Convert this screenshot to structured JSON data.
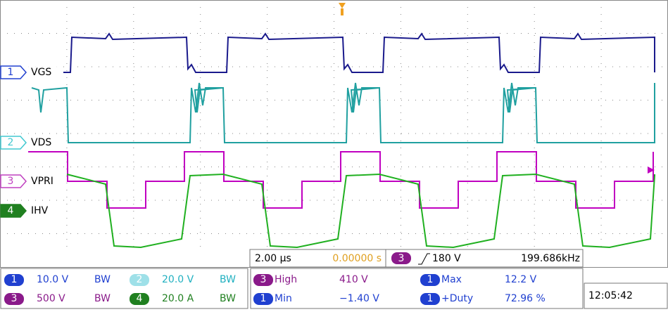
{
  "channels": [
    {
      "number": "1",
      "label": "VGS"
    },
    {
      "number": "2",
      "label": "VDS"
    },
    {
      "number": "3",
      "label": "VPRI"
    },
    {
      "number": "4",
      "label": "IHV"
    }
  ],
  "timebase": {
    "scale": "2.00 µs",
    "delay": "0.00000 s"
  },
  "trigger": {
    "source": "3",
    "level": "180 V",
    "frequency": "199.686kHz"
  },
  "vertical": [
    {
      "channel": "1",
      "scale": "10.0 V",
      "bw": "BW"
    },
    {
      "channel": "2",
      "scale": "20.0 V",
      "bw": "BW"
    },
    {
      "channel": "3",
      "scale": "500 V",
      "bw": "BW"
    },
    {
      "channel": "4",
      "scale": "20.0 A",
      "bw": "BW"
    }
  ],
  "measurements": [
    {
      "channel": "3",
      "name": "High",
      "value": "410 V"
    },
    {
      "channel": "1",
      "name": "Min",
      "value": "−1.40 V"
    },
    {
      "channel": "1",
      "name": "Max",
      "value": "12.2 V"
    },
    {
      "channel": "1",
      "name": "+Duty",
      "value": "72.96 %"
    }
  ],
  "clock": "12:05:42"
}
